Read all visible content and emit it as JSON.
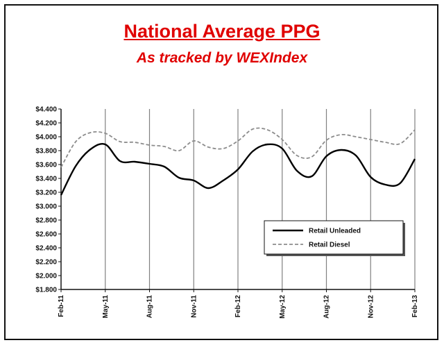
{
  "colors": {
    "title": "#e00000",
    "unleaded": "#000000",
    "diesel": "#8c8c8c",
    "grid": "#808080"
  },
  "chart_data": {
    "type": "line",
    "title": "National Average PPG",
    "subtitle": "As tracked by WEXIndex",
    "x_tick_labels": [
      "Feb-11",
      "May-11",
      "Aug-11",
      "Nov-11",
      "Feb-12",
      "May-12",
      "Aug-12",
      "Nov-12",
      "Feb-13"
    ],
    "y_tick_labels": [
      "$4.400",
      "$4.200",
      "$4.000",
      "$3.800",
      "$3.600",
      "$3.400",
      "$3.200",
      "$3.000",
      "$2.800",
      "$2.600",
      "$2.400",
      "$2.200",
      "$2.000",
      "$1.800"
    ],
    "ylim": [
      1.8,
      4.4
    ],
    "x": [
      "Feb-11",
      "Mar-11",
      "Apr-11",
      "May-11",
      "Jun-11",
      "Jul-11",
      "Aug-11",
      "Sep-11",
      "Oct-11",
      "Nov-11",
      "Dec-11",
      "Jan-12",
      "Feb-12",
      "Mar-12",
      "Apr-12",
      "May-12",
      "Jun-12",
      "Jul-12",
      "Aug-12",
      "Sep-12",
      "Oct-12",
      "Nov-12",
      "Dec-12",
      "Jan-13",
      "Feb-13"
    ],
    "grid": "vertical",
    "legend_position": "bottom-right",
    "series": [
      {
        "name": "Retail Unleaded",
        "style": "solid",
        "values": [
          3.16,
          3.58,
          3.82,
          3.89,
          3.65,
          3.64,
          3.61,
          3.57,
          3.41,
          3.37,
          3.26,
          3.37,
          3.53,
          3.79,
          3.89,
          3.83,
          3.51,
          3.43,
          3.72,
          3.81,
          3.73,
          3.42,
          3.31,
          3.33,
          3.68
        ]
      },
      {
        "name": "Retail Diesel",
        "style": "dashed",
        "values": [
          3.56,
          3.93,
          4.06,
          4.05,
          3.93,
          3.92,
          3.88,
          3.86,
          3.8,
          3.94,
          3.85,
          3.83,
          3.94,
          4.11,
          4.1,
          3.96,
          3.73,
          3.71,
          3.95,
          4.03,
          4.0,
          3.96,
          3.92,
          3.9,
          4.1
        ]
      }
    ]
  }
}
